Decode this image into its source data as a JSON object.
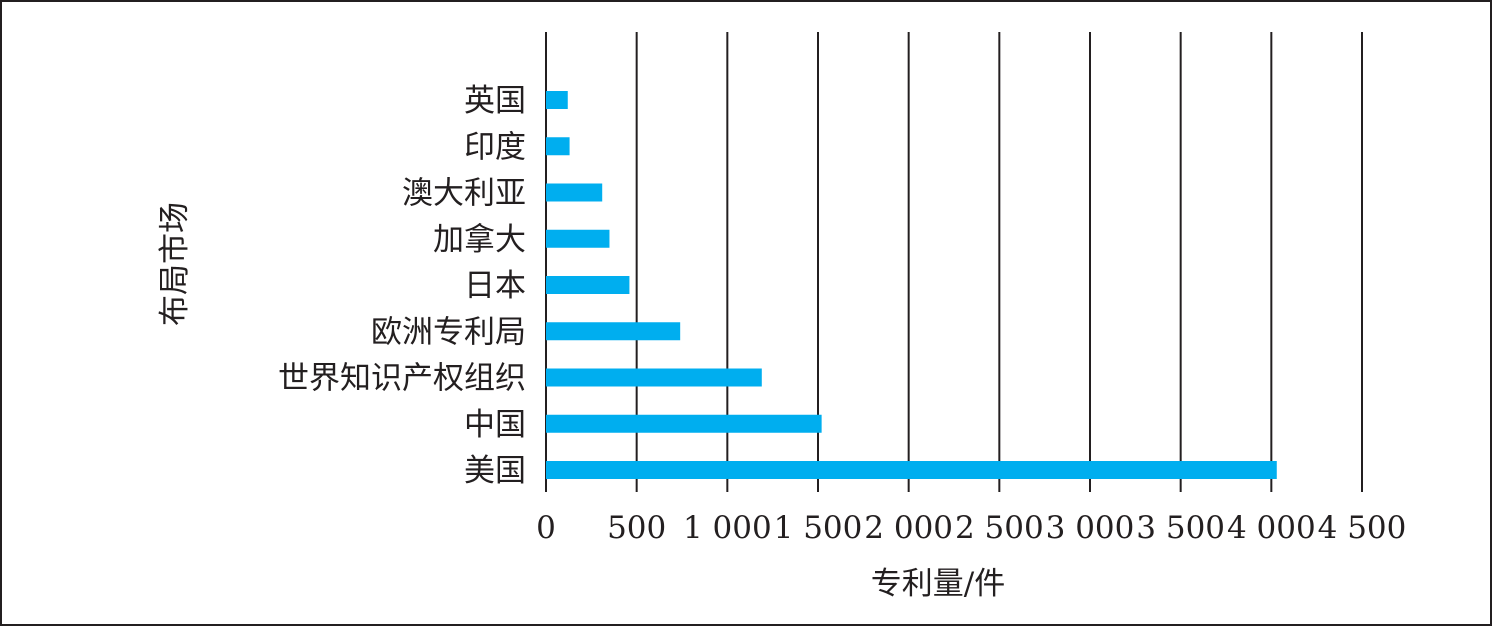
{
  "chart_data": {
    "type": "bar",
    "orientation": "horizontal",
    "categories": [
      "英国",
      "印度",
      "澳大利亚",
      "加拿大",
      "日本",
      "欧洲专利局",
      "世界知识产权组织",
      "中国",
      "美国"
    ],
    "values": [
      120,
      130,
      310,
      350,
      460,
      740,
      1190,
      1520,
      4030
    ],
    "xlabel": "专利量/件",
    "ylabel": "布局市场",
    "xlim": [
      0,
      4500
    ],
    "xticks": [
      0,
      500,
      1000,
      1500,
      2000,
      2500,
      3000,
      3500,
      4000,
      4500
    ],
    "xtick_labels": [
      "0",
      "500",
      "1 000",
      "1 500",
      "2 000",
      "2 500",
      "3 000",
      "3 500",
      "4 000",
      "4 500"
    ],
    "grid": "vertical",
    "legend": "none",
    "colors": {
      "bar": "#00aeef",
      "grid": "#231f20",
      "text": "#231f20",
      "border": "#231f20"
    }
  }
}
